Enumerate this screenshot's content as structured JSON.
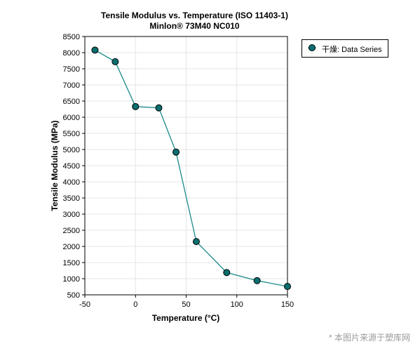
{
  "chart_data": {
    "type": "line",
    "title": "Tensile Modulus vs. Temperature (ISO 11403-1)",
    "subtitle": "Minlon® 73M40 NC010",
    "xlabel": "Temperature (°C)",
    "ylabel": "Tensile Modulus (MPa)",
    "xlim": [
      -50,
      150
    ],
    "ylim": [
      500,
      8500
    ],
    "xticks": [
      -50,
      0,
      50,
      100,
      150
    ],
    "yticks": [
      500,
      1000,
      1500,
      2000,
      2500,
      3000,
      3500,
      4000,
      4500,
      5000,
      5500,
      6000,
      6500,
      7000,
      7500,
      8000,
      8500
    ],
    "grid": true,
    "legend_position": "outside-top-right",
    "series": [
      {
        "name": "干燥: Data Series",
        "color": "#1a8a8a",
        "marker_color": "#0b6e6e",
        "x": [
          -40,
          -20,
          0,
          23,
          40,
          60,
          90,
          120,
          150
        ],
        "y": [
          8080,
          7720,
          6330,
          6290,
          4920,
          2150,
          1190,
          940,
          760
        ]
      }
    ]
  },
  "watermark": "* 本图片来源于塑库网"
}
